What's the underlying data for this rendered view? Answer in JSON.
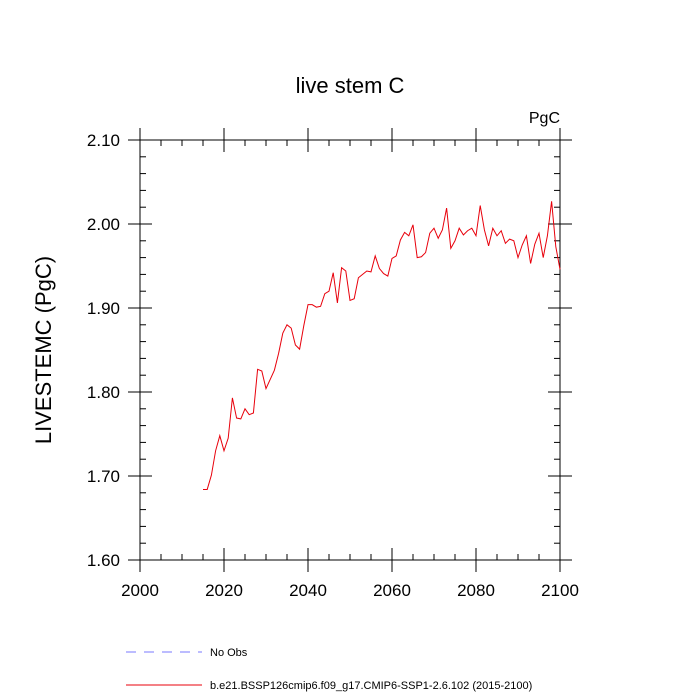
{
  "chart_data": {
    "type": "line",
    "title": "live stem C",
    "units_label": "PgC",
    "xlabel": "",
    "ylabel": "LIVESTEMC  (PgC)",
    "xlim": [
      2000,
      2100
    ],
    "ylim": [
      1.6,
      2.1
    ],
    "x_ticks": [
      2000,
      2020,
      2040,
      2060,
      2080,
      2100
    ],
    "x_tick_labels": [
      "2000",
      "2020",
      "2040",
      "2060",
      "2080",
      "2100"
    ],
    "y_ticks": [
      1.6,
      1.7,
      1.8,
      1.9,
      2.0,
      2.1
    ],
    "y_tick_labels": [
      "1.60",
      "1.70",
      "1.80",
      "1.90",
      "2.00",
      "2.10"
    ],
    "series": [
      {
        "name": "b.e21.BSSP126cmip6.f09_g17.CMIP6-SSP1-2.6.102 (2015-2100)",
        "color": "#e8000b",
        "style": "solid",
        "x": [
          2015,
          2016,
          2017,
          2018,
          2019,
          2020,
          2021,
          2022,
          2023,
          2024,
          2025,
          2026,
          2027,
          2028,
          2029,
          2030,
          2031,
          2032,
          2033,
          2034,
          2035,
          2036,
          2037,
          2038,
          2039,
          2040,
          2041,
          2042,
          2043,
          2044,
          2045,
          2046,
          2047,
          2048,
          2049,
          2050,
          2051,
          2052,
          2053,
          2054,
          2055,
          2056,
          2057,
          2058,
          2059,
          2060,
          2061,
          2062,
          2063,
          2064,
          2065,
          2066,
          2067,
          2068,
          2069,
          2070,
          2071,
          2072,
          2073,
          2074,
          2075,
          2076,
          2077,
          2078,
          2079,
          2080,
          2081,
          2082,
          2083,
          2084,
          2085,
          2086,
          2087,
          2088,
          2089,
          2090,
          2091,
          2092,
          2093,
          2094,
          2095,
          2096,
          2097,
          2098,
          2099,
          2100
        ],
        "values": [
          1.684,
          1.684,
          1.701,
          1.73,
          1.748,
          1.73,
          1.745,
          1.793,
          1.769,
          1.768,
          1.78,
          1.773,
          1.775,
          1.827,
          1.825,
          1.804,
          1.815,
          1.826,
          1.846,
          1.87,
          1.88,
          1.876,
          1.856,
          1.851,
          1.879,
          1.904,
          1.904,
          1.901,
          1.902,
          1.917,
          1.92,
          1.942,
          1.906,
          1.948,
          1.944,
          1.909,
          1.911,
          1.936,
          1.94,
          1.944,
          1.943,
          1.962,
          1.947,
          1.941,
          1.938,
          1.959,
          1.962,
          1.981,
          1.99,
          1.986,
          1.999,
          1.96,
          1.961,
          1.966,
          1.989,
          1.995,
          1.983,
          1.993,
          2.019,
          1.971,
          1.98,
          1.995,
          1.987,
          1.992,
          1.995,
          1.986,
          2.022,
          1.993,
          1.974,
          1.995,
          1.986,
          1.992,
          1.977,
          1.982,
          1.98,
          1.96,
          1.975,
          1.986,
          1.953,
          1.976,
          1.989,
          1.96,
          1.986,
          2.027,
          1.973,
          1.946
        ]
      },
      {
        "name": "No Obs",
        "color": "#7a7aff",
        "style": "dashed",
        "x": [],
        "values": []
      }
    ]
  }
}
